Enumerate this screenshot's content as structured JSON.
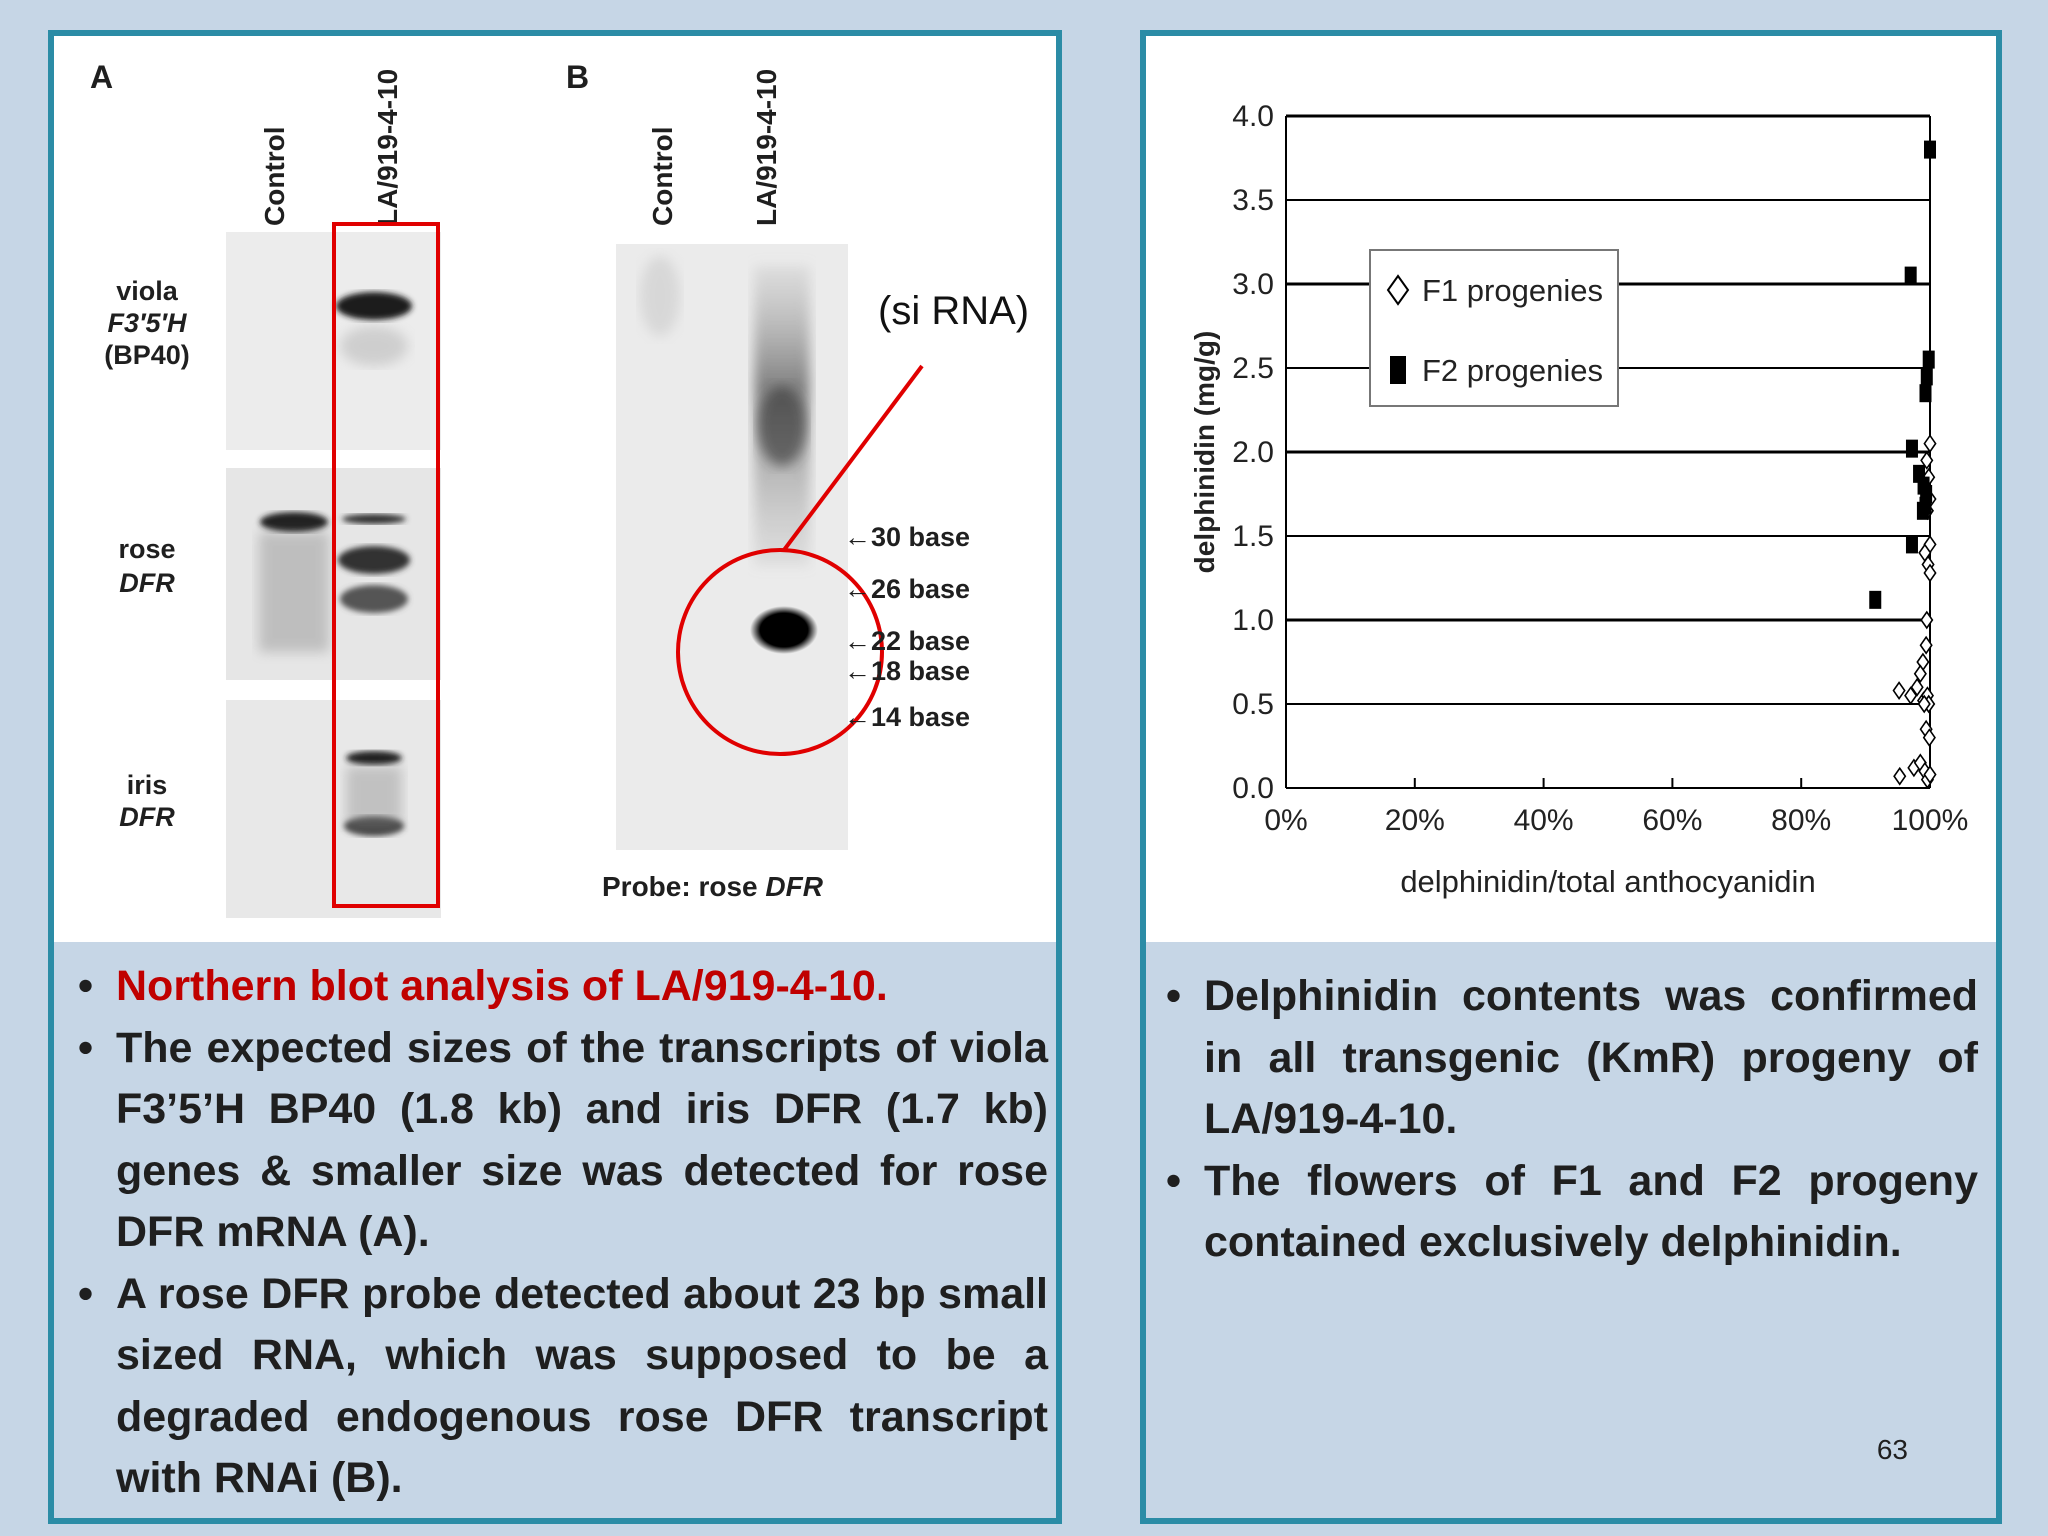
{
  "left": {
    "blot_a": {
      "panel_letter": "A",
      "lanes": [
        "Control",
        "LA/919-4-10"
      ],
      "rows": [
        {
          "line1": "viola",
          "line2": "F3′5′H",
          "line3": "(BP40)"
        },
        {
          "line1": "rose",
          "line2": "DFR"
        },
        {
          "line1": "iris",
          "line2": "DFR"
        }
      ]
    },
    "blot_b": {
      "panel_letter": "B",
      "lanes": [
        "Control",
        "LA/919-4-10"
      ],
      "annotation": "(si RNA)",
      "markers": [
        "←30 base",
        "←26 base",
        "←22 base",
        "←18 base",
        "←14 base"
      ],
      "probe_prefix": "Probe: rose ",
      "probe_italic": "DFR"
    },
    "bullets": [
      "Northern blot analysis of LA/919-4-10.",
      " The expected sizes of the transcripts of viola F3’5’H BP40 (1.8 kb) and iris DFR (1.7 kb) genes & smaller size was detected for rose DFR mRNA (A).",
      "A rose DFR probe detected about 23 bp small sized RNA, which was supposed to be a degraded endogenous rose DFR transcript with RNAi (B)."
    ]
  },
  "right": {
    "bullets": [
      "Delphinidin contents was confirmed in all transgenic (KmR) progeny of LA/919-4-10.",
      "The flowers of F1 and F2 progeny contained exclusively delphinidin."
    ],
    "page_number": "63"
  },
  "chart_data": {
    "type": "scatter",
    "xlabel": "delphinidin/total anthocyanidin",
    "ylabel": "delphinidin (mg/g)",
    "xlim": [
      0,
      100
    ],
    "ylim": [
      0,
      4.0
    ],
    "x_ticks": [
      "0%",
      "20%",
      "40%",
      "60%",
      "80%",
      "100%"
    ],
    "y_ticks": [
      "0.0",
      "0.5",
      "1.0",
      "1.5",
      "2.0",
      "2.5",
      "3.0",
      "3.5",
      "4.0"
    ],
    "grid": "horizontal",
    "legend_position": "upper-left",
    "series": [
      {
        "name": "F1 progenies",
        "marker": "open-diamond",
        "color": "#000000",
        "x": [
          100,
          99.5,
          99.8,
          100,
          99.6,
          100,
          99.2,
          99.7,
          100,
          99.5,
          99.4,
          98.9,
          98.5,
          98.0,
          99.0,
          99.6,
          99.8,
          95.2,
          97.0,
          99.1,
          99.4,
          99.9,
          95.3,
          97.5,
          98.5,
          99.2,
          99.6,
          100
        ],
        "y": [
          2.05,
          1.95,
          1.85,
          1.72,
          1.65,
          1.45,
          1.4,
          1.33,
          1.28,
          1.0,
          0.85,
          0.75,
          0.68,
          0.6,
          0.52,
          0.55,
          0.5,
          0.58,
          0.55,
          0.5,
          0.35,
          0.3,
          0.07,
          0.12,
          0.15,
          0.1,
          0.05,
          0.08
        ]
      },
      {
        "name": "F2 progenies",
        "marker": "filled-square",
        "color": "#000000",
        "x": [
          100,
          97,
          99.5,
          99.3,
          99.8,
          97.2,
          98.3,
          99.0,
          99.4,
          98.9,
          99.3,
          97.2,
          91.5
        ],
        "y": [
          3.8,
          3.05,
          2.45,
          2.35,
          2.55,
          2.02,
          1.87,
          1.8,
          1.75,
          1.65,
          1.68,
          1.45,
          1.12
        ]
      }
    ]
  }
}
